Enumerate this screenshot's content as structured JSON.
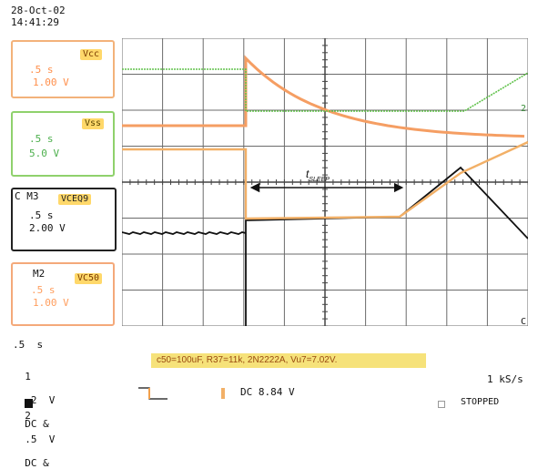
{
  "datetime": {
    "date": "28-Oct-02",
    "time": "14:41:29"
  },
  "panels": {
    "vcc": {
      "tag": "Vcc",
      "line1": ".5 s",
      "line2": "1.00 V"
    },
    "vss": {
      "tag": "Vss",
      "line1": ".5 s",
      "line2": "5.0 V"
    },
    "vceq": {
      "title": "C M3",
      "tag": "VCEQ9",
      "line1": ".5 s",
      "line2": "2.00 V"
    },
    "vc50": {
      "title": "M2",
      "tag": "VC50",
      "line1": ".5 s",
      "line2": "1.00 V"
    }
  },
  "trace_markers": {
    "right_2": "2",
    "right_c": "C"
  },
  "graph_label": {
    "main": "t",
    "sub": "SLEEP"
  },
  "annotation": "c50=100uF, R37=11k, 2N2222A, Vu7=7.02V.",
  "bottom": {
    "timebase": ".5  s",
    "ch1": {
      "num": "1",
      "volts": ".2  V",
      "coupling": "DC &"
    },
    "ch2": {
      "num": "2",
      "volts": ".5  V",
      "coupling": "DC &"
    },
    "trigger": "DC 8.84 V",
    "rate": "1 kS/s",
    "status": "STOPPED"
  },
  "colors": {
    "grid": "#6b6b6b",
    "vcc": "#f59e63",
    "vss": "#61c24b",
    "vceq": "#111111",
    "vc50": "#f2b067"
  }
}
